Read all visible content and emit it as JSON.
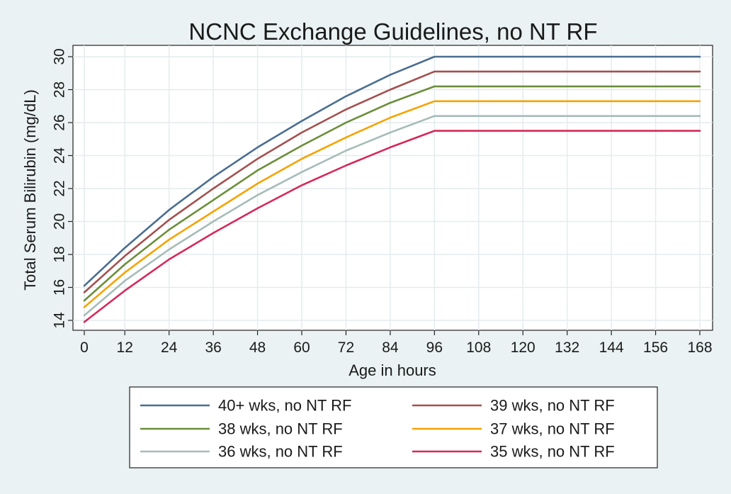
{
  "chart_data": {
    "type": "line",
    "title": "NCNC Exchange  Guidelines, no NT RF",
    "xlabel": "Age in hours",
    "ylabel": "Total Serum Bilirubin (mg/dL)",
    "xlim": [
      0,
      168
    ],
    "ylim": [
      14,
      30
    ],
    "x_ticks": [
      0,
      12,
      24,
      36,
      48,
      60,
      72,
      84,
      96,
      108,
      120,
      132,
      144,
      156,
      168
    ],
    "y_ticks": [
      14,
      16,
      18,
      20,
      22,
      24,
      26,
      28,
      30
    ],
    "grid": true,
    "legend_position": "bottom",
    "x": [
      1,
      12,
      24,
      36,
      48,
      60,
      72,
      84,
      96,
      108,
      120,
      132,
      144,
      156,
      168
    ],
    "series": [
      {
        "name": "40+ wks, no NT RF",
        "color": "#4a6e90",
        "values": [
          16.1,
          18.4,
          20.7,
          22.7,
          24.5,
          26.1,
          27.6,
          28.9,
          30.0,
          30.0,
          30.0,
          30.0,
          30.0,
          30.0,
          30.0
        ]
      },
      {
        "name": "39 wks, no NT RF",
        "color": "#a4504f",
        "values": [
          15.7,
          17.9,
          20.1,
          22.0,
          23.8,
          25.4,
          26.8,
          28.0,
          29.1,
          29.1,
          29.1,
          29.1,
          29.1,
          29.1,
          29.1
        ]
      },
      {
        "name": "38 wks, no NT RF",
        "color": "#6b8e3a",
        "values": [
          15.2,
          17.4,
          19.5,
          21.3,
          23.1,
          24.6,
          26.0,
          27.2,
          28.2,
          28.2,
          28.2,
          28.2,
          28.2,
          28.2,
          28.2
        ]
      },
      {
        "name": "37 wks, no NT RF",
        "color": "#f5a300",
        "values": [
          14.8,
          16.9,
          18.9,
          20.6,
          22.3,
          23.8,
          25.1,
          26.3,
          27.3,
          27.3,
          27.3,
          27.3,
          27.3,
          27.3,
          27.3
        ]
      },
      {
        "name": "36 wks, no NT RF",
        "color": "#a6bcb8",
        "values": [
          14.3,
          16.4,
          18.3,
          20.0,
          21.6,
          23.0,
          24.3,
          25.4,
          26.4,
          26.4,
          26.4,
          26.4,
          26.4,
          26.4,
          26.4
        ]
      },
      {
        "name": "35 wks, no NT RF",
        "color": "#d6285a",
        "values": [
          13.9,
          15.8,
          17.7,
          19.3,
          20.8,
          22.2,
          23.4,
          24.5,
          25.5,
          25.5,
          25.5,
          25.5,
          25.5,
          25.5,
          25.5
        ]
      }
    ]
  }
}
